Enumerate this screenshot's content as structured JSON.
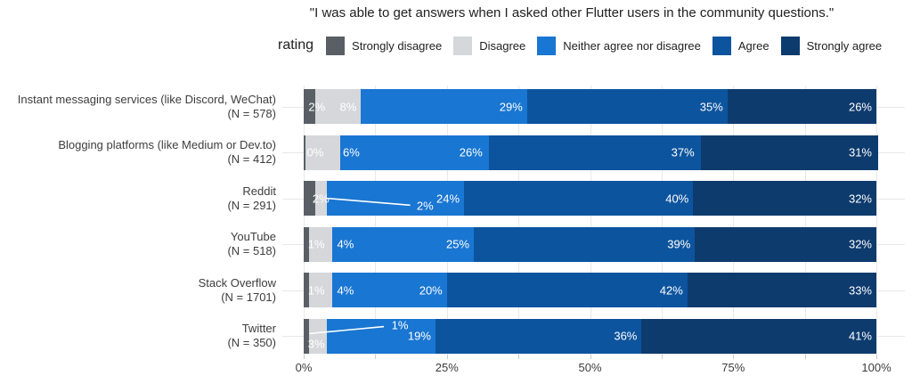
{
  "title": "\"I was able to get answers when I asked other Flutter users in the community questions.\"",
  "legend": {
    "title": "rating",
    "items": [
      "Strongly disagree",
      "Disagree",
      "Neither agree nor disagree",
      "Agree",
      "Strongly agree"
    ]
  },
  "colors": {
    "Strongly disagree": "#5a5f66",
    "Disagree": "#d5d7da",
    "Neither agree nor disagree": "#1976d2",
    "Agree": "#0d549e",
    "Strongly agree": "#0e3b6e"
  },
  "chart_data": {
    "type": "bar",
    "orientation": "horizontal",
    "stacked": true,
    "unit": "%",
    "xlim": [
      0,
      100
    ],
    "x_tick_values": [
      0,
      25,
      50,
      75,
      100
    ],
    "x_tick_labels": [
      "0%",
      "25%",
      "50%",
      "75%",
      "100%"
    ],
    "minor_grid_step_pct": 12.5,
    "grid": "on",
    "legend_position": "top",
    "categories": [
      {
        "label": "Instant messaging services (like Discord, WeChat)",
        "n": "(N = 578)"
      },
      {
        "label": "Blogging platforms (like Medium or Dev.to)",
        "n": "(N = 412)"
      },
      {
        "label": "Reddit",
        "n": "(N = 291)"
      },
      {
        "label": "YouTube",
        "n": "(N = 518)"
      },
      {
        "label": "Stack Overflow",
        "n": "(N = 1701)"
      },
      {
        "label": "Twitter",
        "n": "(N = 350)"
      }
    ],
    "series": [
      {
        "name": "Strongly disagree",
        "values": [
          2,
          0,
          2,
          1,
          1,
          1
        ]
      },
      {
        "name": "Disagree",
        "values": [
          8,
          6,
          2,
          4,
          4,
          3
        ]
      },
      {
        "name": "Neither agree nor disagree",
        "values": [
          29,
          26,
          24,
          25,
          20,
          19
        ]
      },
      {
        "name": "Agree",
        "values": [
          35,
          37,
          40,
          39,
          42,
          36
        ]
      },
      {
        "name": "Strongly agree",
        "values": [
          26,
          31,
          32,
          32,
          33,
          41
        ]
      }
    ],
    "label_overrides": [
      {
        "row": 0,
        "series": 0,
        "mode": "center-at",
        "x_pct": 2.3
      },
      {
        "row": 1,
        "series": 0,
        "mode": "center-at",
        "x_pct": 2.0
      },
      {
        "row": 1,
        "series": 1,
        "mode": "center-at",
        "x_pct": 8.3
      },
      {
        "row": 2,
        "series": 0,
        "mode": "center-at",
        "x_pct": 3.0
      },
      {
        "row": 2,
        "series": 1,
        "mode": "callout",
        "x_pct": 21.2,
        "y_frac": 0.73,
        "line": {
          "x1_pct": 3.9,
          "y1_frac": 0.5,
          "x2_pct": 18.6,
          "y2_frac": 0.7
        }
      },
      {
        "row": 3,
        "series": 0,
        "mode": "center-at",
        "x_pct": 2.2
      },
      {
        "row": 3,
        "series": 1,
        "mode": "center-at",
        "x_pct": 7.3
      },
      {
        "row": 4,
        "series": 0,
        "mode": "center-at",
        "x_pct": 2.2
      },
      {
        "row": 4,
        "series": 1,
        "mode": "center-at",
        "x_pct": 7.3
      },
      {
        "row": 5,
        "series": 0,
        "mode": "callout",
        "x_pct": 16.8,
        "y_frac": 0.18,
        "line": {
          "x1_pct": 1.0,
          "y1_frac": 0.42,
          "x2_pct": 14.0,
          "y2_frac": 0.22
        }
      },
      {
        "row": 5,
        "series": 1,
        "mode": "center-at",
        "x_pct": 2.2,
        "y_frac": 0.74
      }
    ]
  }
}
